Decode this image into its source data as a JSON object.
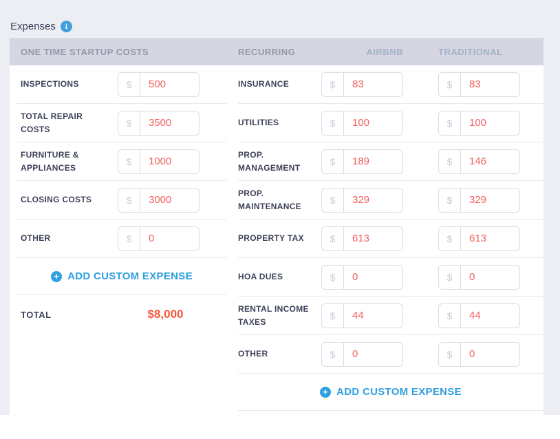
{
  "page": {
    "title": "Expenses",
    "info_icon": "i"
  },
  "currency_symbol": "$",
  "startup": {
    "header": "ONE TIME STARTUP COSTS",
    "rows": [
      {
        "label": "INSPECTIONS",
        "value": "500"
      },
      {
        "label": "TOTAL REPAIR COSTS",
        "value": "3500"
      },
      {
        "label": "FURNITURE & APPLIANCES",
        "value": "1000"
      },
      {
        "label": "CLOSING COSTS",
        "value": "3000"
      },
      {
        "label": "OTHER",
        "value": "0"
      }
    ],
    "add_button_label": "ADD CUSTOM EXPENSE",
    "total_label": "TOTAL",
    "total_value": "$8,000"
  },
  "recurring": {
    "header": "RECURRING",
    "column_airbnb": "AIRBNB",
    "column_traditional": "TRADITIONAL",
    "rows": [
      {
        "label": "INSURANCE",
        "airbnb": "83",
        "traditional": "83"
      },
      {
        "label": "UTILITIES",
        "airbnb": "100",
        "traditional": "100"
      },
      {
        "label": "PROP. MANAGEMENT",
        "airbnb": "189",
        "traditional": "146"
      },
      {
        "label": "PROP. MAINTENANCE",
        "airbnb": "329",
        "traditional": "329"
      },
      {
        "label": "PROPERTY TAX",
        "airbnb": "613",
        "traditional": "613"
      },
      {
        "label": "HOA DUES",
        "airbnb": "0",
        "traditional": "0"
      },
      {
        "label": "RENTAL INCOME TAXES",
        "airbnb": "44",
        "traditional": "44"
      },
      {
        "label": "OTHER",
        "airbnb": "0",
        "traditional": "0"
      }
    ],
    "add_button_label": "ADD CUSTOM EXPENSE"
  },
  "colors": {
    "accent_blue": "#2e9fe0",
    "value_coral": "#f4605e",
    "total_orange": "#f5573b",
    "header_bar_bg": "#d5d6e2",
    "page_band_bg": "#edeef4",
    "label_navy": "#3d4259"
  }
}
